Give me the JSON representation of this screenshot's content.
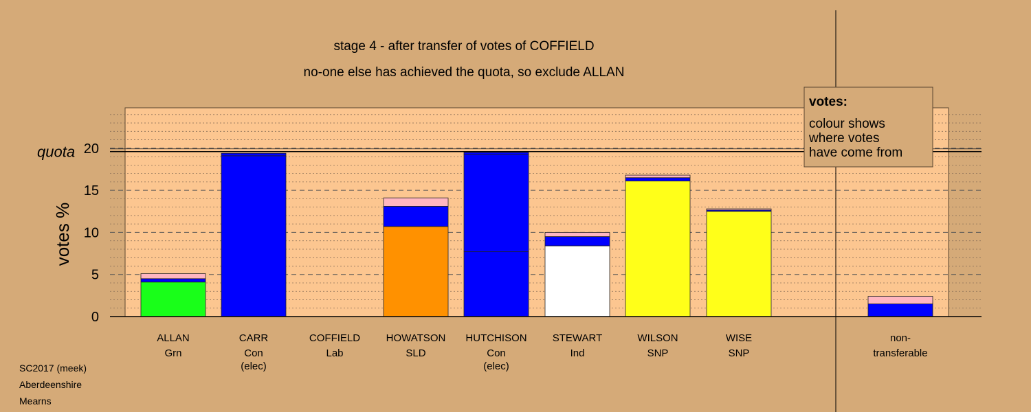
{
  "chart_data": {
    "type": "bar",
    "stacked": true,
    "title": "stage 4 - after transfer of votes of COFFIELD",
    "subtitle": "no-one else has achieved the quota, so exclude ALLAN",
    "ylabel": "votes %",
    "ylim": [
      0,
      24.8
    ],
    "yticks": [
      0,
      5,
      10,
      15,
      20
    ],
    "quota": 19.6,
    "quota_label": "quota",
    "grid": true,
    "legend": {
      "title": "votes:",
      "lines": [
        "colour shows",
        "where votes",
        "have come from"
      ],
      "placement": "top-right"
    },
    "candidates": [
      {
        "name": "ALLAN",
        "party": "Grn",
        "note": "",
        "segments": [
          {
            "from": "Grn",
            "value": 4.1
          },
          {
            "from": "Con",
            "value": 0.4
          },
          {
            "from": "Lab",
            "value": 0.6
          }
        ]
      },
      {
        "name": "CARR",
        "party": "Con",
        "note": "(elec)",
        "segments": [
          {
            "from": "Con",
            "value": 19.1
          },
          {
            "from": "Con",
            "value": 0.3
          }
        ]
      },
      {
        "name": "COFFIELD",
        "party": "Lab",
        "note": "",
        "segments": []
      },
      {
        "name": "HOWATSON",
        "party": "SLD",
        "note": "",
        "segments": [
          {
            "from": "SLD",
            "value": 10.7
          },
          {
            "from": "Con",
            "value": 2.4
          },
          {
            "from": "Lab",
            "value": 1.0
          }
        ]
      },
      {
        "name": "HUTCHISON",
        "party": "Con",
        "note": "(elec)",
        "segments": [
          {
            "from": "Con",
            "value": 7.7
          },
          {
            "from": "Con",
            "value": 11.6
          },
          {
            "from": "Con",
            "value": 0.2
          }
        ]
      },
      {
        "name": "STEWART",
        "party": "Ind",
        "note": "",
        "segments": [
          {
            "from": "Ind",
            "value": 8.4
          },
          {
            "from": "Con",
            "value": 1.1
          },
          {
            "from": "Lab",
            "value": 0.5
          }
        ]
      },
      {
        "name": "WILSON",
        "party": "SNP",
        "note": "",
        "segments": [
          {
            "from": "SNP",
            "value": 16.1
          },
          {
            "from": "Con",
            "value": 0.4
          },
          {
            "from": "Lab",
            "value": 0.3
          }
        ]
      },
      {
        "name": "WISE",
        "party": "SNP",
        "note": "",
        "segments": [
          {
            "from": "SNP",
            "value": 12.5
          },
          {
            "from": "Con",
            "value": 0.15
          },
          {
            "from": "Lab",
            "value": 0.15
          }
        ]
      }
    ],
    "nontransferable": {
      "label_lines": [
        "non-",
        "transferable"
      ],
      "segments": [
        {
          "from": "Con",
          "value": 1.5
        },
        {
          "from": "Lab",
          "value": 0.9
        }
      ]
    }
  },
  "colors": {
    "background": "#d5aa78",
    "plot_background": "#fcc690",
    "Grn": "#19ff19",
    "Con": "#0000ff",
    "Lab": "#ffb6c1",
    "SLD": "#ff9100",
    "Ind": "#ffffff",
    "SNP": "#ffff19"
  },
  "footer": [
    "SC2017 (meek)",
    "Aberdeenshire",
    "Mearns"
  ]
}
